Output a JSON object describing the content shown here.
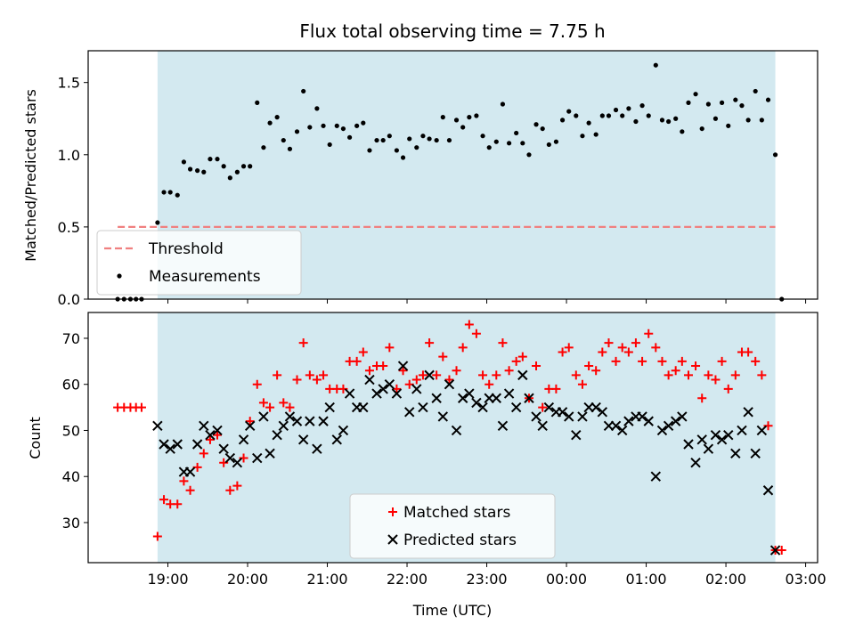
{
  "chart_data": [
    {
      "type": "scatter",
      "title": "Flux total observing time = 7.75 h",
      "ylabel": "Matched/Predicted stars",
      "xlabel": "",
      "x_unit": "hours since 00:00 UTC on first night (values > 24 are after midnight)",
      "xlim": [
        18.0,
        27.15
      ],
      "ylim": [
        0,
        1.72
      ],
      "yticks": [
        0.0,
        0.5,
        1.0,
        1.5
      ],
      "yticklabels": [
        "0.0",
        "0.5",
        "1.0",
        "1.5"
      ],
      "shaded_interval": [
        18.87,
        26.62
      ],
      "shade_color": "#d3e9f0",
      "legend_position": "lower-left",
      "series": [
        {
          "name": "Threshold",
          "kind": "dashed-line",
          "color": "#f08080",
          "x": [
            18.37,
            26.62
          ],
          "y": [
            0.5,
            0.5
          ]
        },
        {
          "name": "Measurements",
          "kind": "dots",
          "color": "#000000",
          "x": [
            18.37,
            18.45,
            18.53,
            18.6,
            18.67,
            18.87,
            18.95,
            19.03,
            19.12,
            19.2,
            19.28,
            19.37,
            19.45,
            19.53,
            19.62,
            19.7,
            19.78,
            19.87,
            19.95,
            20.03,
            20.12,
            20.2,
            20.28,
            20.37,
            20.45,
            20.53,
            20.62,
            20.7,
            20.78,
            20.87,
            20.95,
            21.03,
            21.12,
            21.2,
            21.28,
            21.37,
            21.45,
            21.53,
            21.62,
            21.7,
            21.78,
            21.87,
            21.95,
            22.03,
            22.12,
            22.2,
            22.28,
            22.37,
            22.45,
            22.53,
            22.62,
            22.7,
            22.78,
            22.87,
            22.95,
            23.03,
            23.12,
            23.2,
            23.28,
            23.37,
            23.45,
            23.53,
            23.62,
            23.7,
            23.78,
            23.87,
            23.95,
            24.03,
            24.12,
            24.2,
            24.28,
            24.37,
            24.45,
            24.53,
            24.62,
            24.7,
            24.78,
            24.87,
            24.95,
            25.03,
            25.12,
            25.2,
            25.28,
            25.37,
            25.45,
            25.53,
            25.62,
            25.7,
            25.78,
            25.87,
            25.95,
            26.03,
            26.12,
            26.2,
            26.28,
            26.37,
            26.45,
            26.53,
            26.62,
            26.7
          ],
          "y": [
            0.0,
            0.0,
            0.0,
            0.0,
            0.0,
            0.53,
            0.74,
            0.74,
            0.72,
            0.95,
            0.9,
            0.89,
            0.88,
            0.97,
            0.97,
            0.92,
            0.84,
            0.88,
            0.92,
            0.92,
            1.36,
            1.05,
            1.22,
            1.26,
            1.1,
            1.04,
            1.16,
            1.44,
            1.19,
            1.32,
            1.2,
            1.07,
            1.2,
            1.18,
            1.12,
            1.2,
            1.22,
            1.03,
            1.1,
            1.1,
            1.13,
            1.03,
            0.98,
            1.11,
            1.05,
            1.13,
            1.11,
            1.1,
            1.26,
            1.1,
            1.24,
            1.19,
            1.26,
            1.27,
            1.13,
            1.05,
            1.09,
            1.35,
            1.08,
            1.15,
            1.08,
            1.0,
            1.21,
            1.18,
            1.07,
            1.09,
            1.24,
            1.3,
            1.27,
            1.13,
            1.22,
            1.14,
            1.27,
            1.27,
            1.31,
            1.27,
            1.32,
            1.23,
            1.34,
            1.27,
            1.62,
            1.24,
            1.23,
            1.25,
            1.16,
            1.36,
            1.42,
            1.18,
            1.35,
            1.25,
            1.36,
            1.2,
            1.38,
            1.34,
            1.24,
            1.44,
            1.24,
            1.38,
            1.0,
            0.0
          ]
        }
      ]
    },
    {
      "type": "scatter",
      "title": "",
      "xlabel": "Time (UTC)",
      "ylabel": "Count",
      "x_unit": "hours since 00:00 UTC on first night (values > 24 are after midnight)",
      "xlim": [
        18.0,
        27.15
      ],
      "ylim": [
        21.3,
        75.6
      ],
      "yticks": [
        30,
        40,
        50,
        60,
        70
      ],
      "xticks": [
        19,
        20,
        21,
        22,
        23,
        24,
        25,
        26,
        27
      ],
      "xticklabels": [
        "19:00",
        "20:00",
        "21:00",
        "22:00",
        "23:00",
        "00:00",
        "01:00",
        "02:00",
        "03:00"
      ],
      "shaded_interval": [
        18.87,
        26.62
      ],
      "shade_color": "#d3e9f0",
      "legend_position": "lower-center",
      "series": [
        {
          "name": "Matched stars",
          "kind": "plus",
          "color": "#ff0000",
          "x": [
            18.37,
            18.45,
            18.53,
            18.6,
            18.67,
            18.87,
            18.95,
            19.03,
            19.12,
            19.2,
            19.28,
            19.37,
            19.45,
            19.53,
            19.62,
            19.7,
            19.78,
            19.87,
            19.95,
            20.03,
            20.12,
            20.2,
            20.28,
            20.37,
            20.45,
            20.53,
            20.62,
            20.7,
            20.78,
            20.87,
            20.95,
            21.03,
            21.12,
            21.2,
            21.28,
            21.37,
            21.45,
            21.53,
            21.62,
            21.7,
            21.78,
            21.87,
            21.95,
            22.03,
            22.12,
            22.2,
            22.28,
            22.37,
            22.45,
            22.53,
            22.62,
            22.7,
            22.78,
            22.87,
            22.95,
            23.03,
            23.12,
            23.2,
            23.28,
            23.37,
            23.45,
            23.53,
            23.62,
            23.7,
            23.78,
            23.87,
            23.95,
            24.03,
            24.12,
            24.2,
            24.28,
            24.37,
            24.45,
            24.53,
            24.62,
            24.7,
            24.78,
            24.87,
            24.95,
            25.03,
            25.12,
            25.2,
            25.28,
            25.37,
            25.45,
            25.53,
            25.62,
            25.7,
            25.78,
            25.87,
            25.95,
            26.03,
            26.12,
            26.2,
            26.28,
            26.37,
            26.45,
            26.53,
            26.62,
            26.7
          ],
          "y": [
            55,
            55,
            55,
            55,
            55,
            27,
            35,
            34,
            34,
            39,
            37,
            42,
            45,
            48,
            49,
            43,
            37,
            38,
            44,
            52,
            60,
            56,
            55,
            62,
            56,
            55,
            61,
            69,
            62,
            61,
            62,
            59,
            59,
            59,
            65,
            65,
            67,
            63,
            64,
            64,
            68,
            59,
            63,
            60,
            61,
            62,
            69,
            62,
            66,
            61,
            63,
            68,
            73,
            71,
            62,
            60,
            62,
            69,
            63,
            65,
            66,
            57,
            64,
            55,
            59,
            59,
            67,
            68,
            62,
            60,
            64,
            63,
            67,
            69,
            65,
            68,
            67,
            69,
            65,
            71,
            68,
            65,
            62,
            63,
            65,
            62,
            64,
            57,
            62,
            61,
            65,
            59,
            62,
            67,
            67,
            65,
            62,
            51,
            24,
            24
          ]
        },
        {
          "name": "Predicted stars",
          "kind": "x",
          "color": "#000000",
          "x": [
            18.87,
            18.95,
            19.03,
            19.12,
            19.2,
            19.28,
            19.37,
            19.45,
            19.53,
            19.62,
            19.7,
            19.78,
            19.87,
            19.95,
            20.03,
            20.12,
            20.2,
            20.28,
            20.37,
            20.45,
            20.53,
            20.62,
            20.7,
            20.78,
            20.87,
            20.95,
            21.03,
            21.12,
            21.2,
            21.28,
            21.37,
            21.45,
            21.53,
            21.62,
            21.7,
            21.78,
            21.87,
            21.95,
            22.03,
            22.12,
            22.2,
            22.28,
            22.37,
            22.45,
            22.53,
            22.62,
            22.7,
            22.78,
            22.87,
            22.95,
            23.03,
            23.12,
            23.2,
            23.28,
            23.37,
            23.45,
            23.53,
            23.62,
            23.7,
            23.78,
            23.87,
            23.95,
            24.03,
            24.12,
            24.2,
            24.28,
            24.37,
            24.45,
            24.53,
            24.62,
            24.7,
            24.78,
            24.87,
            24.95,
            25.03,
            25.12,
            25.2,
            25.28,
            25.37,
            25.45,
            25.53,
            25.62,
            25.7,
            25.78,
            25.87,
            25.95,
            26.03,
            26.12,
            26.2,
            26.28,
            26.37,
            26.45,
            26.53,
            26.62
          ],
          "y": [
            51,
            47,
            46,
            47,
            41,
            41,
            47,
            51,
            49,
            50,
            46,
            44,
            43,
            48,
            51,
            44,
            53,
            45,
            49,
            51,
            53,
            52,
            48,
            52,
            46,
            52,
            55,
            48,
            50,
            58,
            55,
            55,
            61,
            58,
            59,
            60,
            58,
            64,
            54,
            59,
            55,
            62,
            57,
            53,
            60,
            50,
            57,
            58,
            56,
            55,
            57,
            57,
            51,
            58,
            55,
            62,
            57,
            53,
            51,
            55,
            54,
            54,
            53,
            49,
            53,
            55,
            55,
            54,
            51,
            51,
            50,
            52,
            53,
            53,
            52,
            40,
            50,
            51,
            52,
            53,
            47,
            43,
            48,
            46,
            49,
            48,
            49,
            45,
            50,
            54,
            45,
            50,
            37,
            24
          ]
        }
      ]
    }
  ]
}
